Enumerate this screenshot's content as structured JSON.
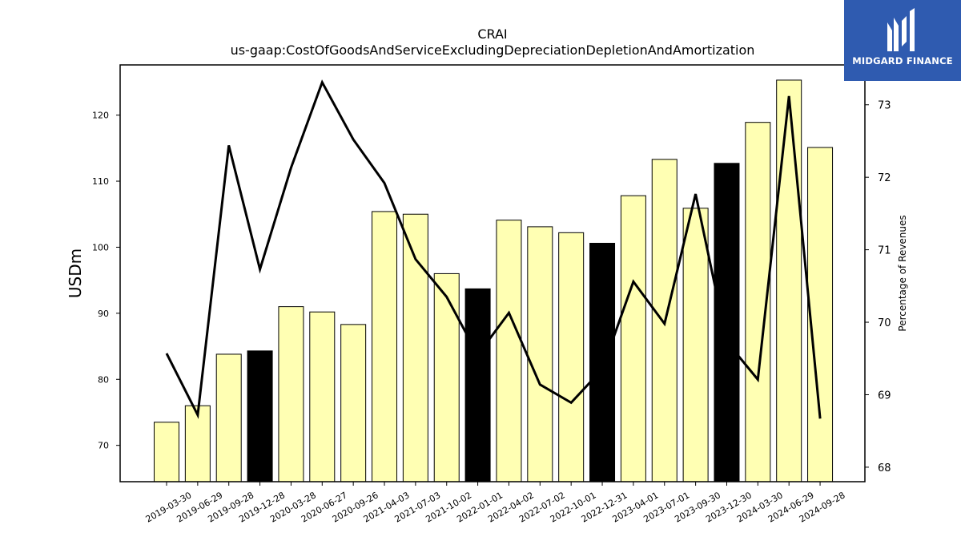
{
  "chart_data": {
    "type": "bar",
    "title": "CRAI",
    "subtitle": "us-gaap:CostOfGoodsAndServiceExcludingDepreciationDepletionAndAmortization",
    "ylabel": "USDm",
    "ylabel_right": "Percentage of Revenues",
    "categories": [
      "2019-03-30",
      "2019-06-29",
      "2019-09-28",
      "2019-12-28",
      "2020-03-28",
      "2020-06-27",
      "2020-09-26",
      "2021-04-03",
      "2021-07-03",
      "2021-10-02",
      "2022-01-01",
      "2022-04-02",
      "2022-07-02",
      "2022-10-01",
      "2022-12-31",
      "2023-04-01",
      "2023-07-01",
      "2023-09-30",
      "2023-12-30",
      "2024-03-30",
      "2024-06-29",
      "2024-09-28"
    ],
    "series": [
      {
        "values": [
          73.5,
          76.0,
          83.8,
          84.3,
          91.0,
          90.2,
          88.3,
          105.4,
          105.0,
          96.0,
          93.7,
          104.1,
          103.1,
          102.2,
          100.6,
          107.8,
          113.3,
          105.9,
          112.7,
          118.9,
          125.3,
          115.1
        ]
      },
      {
        "values": [
          69.57,
          68.72,
          72.44,
          70.73,
          72.13,
          73.31,
          72.52,
          71.92,
          70.87,
          70.35,
          69.55,
          70.13,
          69.14,
          68.89,
          69.35,
          70.56,
          69.98,
          71.77,
          69.73,
          69.21,
          73.12,
          68.67
        ]
      }
    ],
    "bar_colors": [
      "#ffffb3",
      "#ffffb3",
      "#ffffb3",
      "#000000",
      "#ffffb3",
      "#ffffb3",
      "#ffffb3",
      "#ffffb3",
      "#ffffb3",
      "#ffffb3",
      "#000000",
      "#ffffb3",
      "#ffffb3",
      "#ffffb3",
      "#000000",
      "#ffffb3",
      "#ffffb3",
      "#ffffb3",
      "#000000",
      "#ffffb3",
      "#ffffb3",
      "#ffffb3"
    ],
    "line_color": "#000000",
    "ylim": [
      64.5,
      127.6
    ],
    "ylim_right": [
      67.8,
      73.55
    ],
    "yticks": [
      70,
      80,
      90,
      100,
      110,
      120
    ],
    "yticks_right": [
      68,
      69,
      70,
      71,
      72,
      73
    ],
    "grid": false
  },
  "logo": {
    "text": "MIDGARD FINANCE",
    "background": "#2f5bb0"
  }
}
